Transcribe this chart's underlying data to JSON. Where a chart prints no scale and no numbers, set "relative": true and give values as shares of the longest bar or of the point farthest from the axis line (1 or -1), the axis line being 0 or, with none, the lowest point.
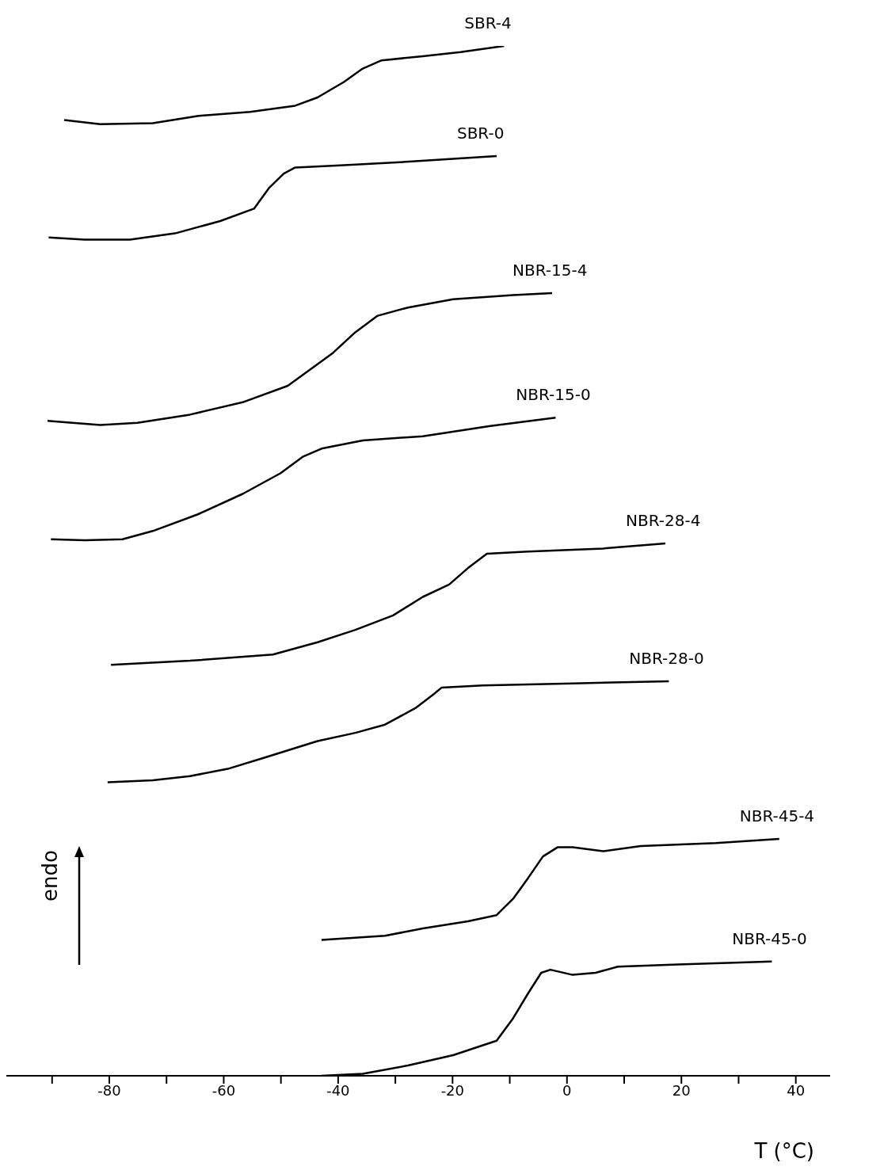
{
  "chart_data": {
    "type": "line",
    "relative": true,
    "xlabel": "T (°C)",
    "ylabel": "endo",
    "xlim": [
      -98,
      46
    ],
    "xticks": [
      {
        "value": -90,
        "label": null
      },
      -80,
      {
        "value": -70,
        "label": null
      },
      -60,
      {
        "value": -50,
        "label": null
      },
      -40,
      {
        "value": -30,
        "label": null
      },
      -20,
      {
        "value": -10,
        "label": null
      },
      0,
      {
        "value": 10,
        "label": null
      },
      20,
      {
        "value": 30,
        "label": null
      },
      40
    ],
    "grid": false,
    "legend": false,
    "marker": "none",
    "line_style": "solid",
    "series": [
      {
        "name": "SBR-4",
        "color": "#000000",
        "x": [
          -87.9,
          -81.6,
          -72.4,
          -64.6,
          -55.4,
          -47.5,
          -43.6,
          -39.0,
          -35.7,
          -32.4,
          -25.2,
          -18.6,
          -11.0
        ],
        "values": [
          0.928,
          0.924,
          0.925,
          0.932,
          0.936,
          0.942,
          0.95,
          0.965,
          0.978,
          0.986,
          0.99,
          0.994,
          1
        ]
      },
      {
        "name": "SBR-0",
        "color": "#000000",
        "x": [
          -90.6,
          -84.3,
          -76.4,
          -68.5,
          -60.6,
          -54.7,
          -52.1,
          -49.5,
          -47.5,
          -39.6,
          -26.5,
          -12.3
        ],
        "values": [
          0.814,
          0.812,
          0.812,
          0.818,
          0.83,
          0.842,
          0.862,
          0.876,
          0.882,
          0.884,
          0.888,
          0.893
        ]
      },
      {
        "name": "NBR-15-4",
        "color": "#000000",
        "x": [
          -90.8,
          -81.6,
          -75.1,
          -65.9,
          -56.7,
          -48.8,
          -40.9,
          -37.0,
          -33.1,
          -27.8,
          -19.9,
          -9.4,
          -2.6
        ],
        "values": [
          0.636,
          0.632,
          0.634,
          0.642,
          0.654,
          0.67,
          0.702,
          0.722,
          0.738,
          0.746,
          0.754,
          0.758,
          0.76
        ]
      },
      {
        "name": "NBR-15-0",
        "color": "#000000",
        "x": [
          -90.2,
          -84.3,
          -77.7,
          -72.4,
          -64.6,
          -56.7,
          -50.1,
          -46.2,
          -42.9,
          -35.7,
          -25.2,
          -13.4,
          -2.0
        ],
        "values": [
          0.521,
          0.52,
          0.521,
          0.529,
          0.545,
          0.565,
          0.585,
          0.601,
          0.609,
          0.617,
          0.621,
          0.631,
          0.639
        ]
      },
      {
        "name": "NBR-28-4",
        "color": "#000000",
        "x": [
          -79.7,
          -65.9,
          -51.4,
          -43.6,
          -37.0,
          -30.4,
          -25.2,
          -20.6,
          -17.3,
          -14.0,
          -6.8,
          6.3,
          12.9,
          17.2
        ],
        "values": [
          0.399,
          0.403,
          0.409,
          0.421,
          0.433,
          0.447,
          0.465,
          0.477,
          0.493,
          0.507,
          0.509,
          0.512,
          0.515,
          0.517
        ]
      },
      {
        "name": "NBR-28-0",
        "color": "#000000",
        "x": [
          -80.3,
          -72.4,
          -65.9,
          -59.3,
          -52.8,
          -43.6,
          -37.0,
          -31.8,
          -26.5,
          -23.2,
          -21.9,
          -14.7,
          1.0,
          17.8
        ],
        "values": [
          0.285,
          0.287,
          0.291,
          0.298,
          0.309,
          0.325,
          0.333,
          0.341,
          0.357,
          0.371,
          0.377,
          0.379,
          0.381,
          0.383
        ]
      },
      {
        "name": "NBR-45-4",
        "color": "#000000",
        "x": [
          -42.9,
          -31.8,
          -25.2,
          -17.3,
          -12.3,
          -9.4,
          -6.8,
          -4.2,
          -1.6,
          1.0,
          6.3,
          12.9,
          26.0,
          37.1
        ],
        "values": [
          0.132,
          0.136,
          0.143,
          0.15,
          0.156,
          0.172,
          0.192,
          0.213,
          0.222,
          0.222,
          0.218,
          0.223,
          0.226,
          0.23
        ]
      },
      {
        "name": "NBR-45-0",
        "color": "#000000",
        "x": [
          -42.9,
          -35.7,
          -27.8,
          -19.9,
          -12.3,
          -9.4,
          -6.8,
          -4.5,
          -2.9,
          1.0,
          5.0,
          8.9,
          19.4,
          35.8
        ],
        "values": [
          0,
          0.002,
          0.01,
          0.02,
          0.034,
          0.056,
          0.08,
          0.1,
          0.103,
          0.098,
          0.1,
          0.106,
          0.108,
          0.111
        ]
      }
    ]
  }
}
